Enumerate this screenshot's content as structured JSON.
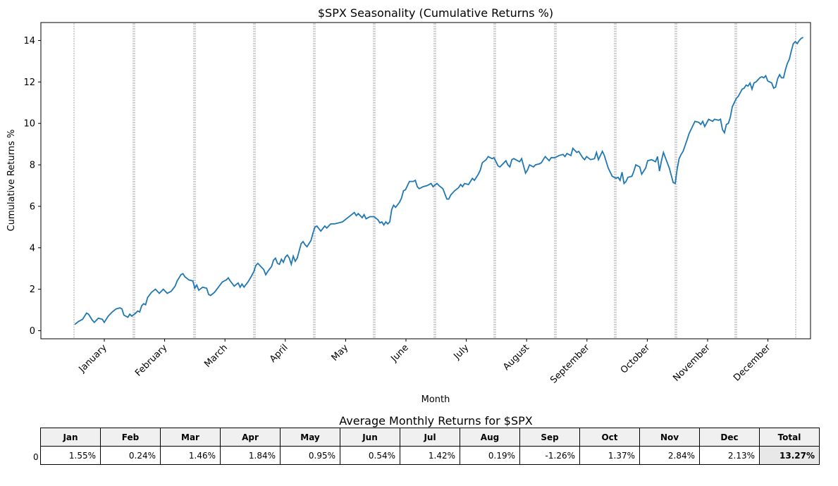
{
  "chart_data": {
    "type": "line",
    "title": "$SPX Seasonality (Cumulative Returns %)",
    "xlabel": "Month",
    "ylabel": "Cumulative Returns %",
    "ylim": [
      -0.4,
      14.8
    ],
    "yticks": [
      0,
      2,
      4,
      6,
      8,
      10,
      12,
      14
    ],
    "month_labels": [
      "January",
      "February",
      "March",
      "April",
      "May",
      "June",
      "July",
      "August",
      "September",
      "October",
      "November",
      "December"
    ],
    "grid": "vertical dashed month separators",
    "series": [
      {
        "color": "#1f77b4",
        "points": [
          [
            0,
            0.3
          ],
          [
            2,
            0.45
          ],
          [
            4,
            0.55
          ],
          [
            6,
            0.85
          ],
          [
            7,
            0.8
          ],
          [
            9,
            0.5
          ],
          [
            10,
            0.4
          ],
          [
            12,
            0.6
          ],
          [
            14,
            0.55
          ],
          [
            15,
            0.4
          ],
          [
            17,
            0.7
          ],
          [
            19,
            0.9
          ],
          [
            21,
            1.05
          ],
          [
            23,
            1.1
          ],
          [
            24,
            1.05
          ],
          [
            25,
            0.75
          ],
          [
            27,
            0.65
          ],
          [
            28,
            0.8
          ],
          [
            29,
            0.7
          ],
          [
            31,
            0.85
          ],
          [
            32,
            0.95
          ],
          [
            33,
            0.9
          ],
          [
            34,
            1.2
          ],
          [
            35,
            1.3
          ],
          [
            36,
            1.25
          ],
          [
            37,
            1.6
          ],
          [
            39,
            1.85
          ],
          [
            41,
            2.0
          ],
          [
            43,
            1.8
          ],
          [
            45,
            2.0
          ],
          [
            47,
            1.8
          ],
          [
            49,
            1.9
          ],
          [
            51,
            2.15
          ],
          [
            52,
            2.4
          ],
          [
            54,
            2.7
          ],
          [
            55,
            2.75
          ],
          [
            56,
            2.6
          ],
          [
            58,
            2.45
          ],
          [
            60,
            2.4
          ],
          [
            61,
            2.05
          ],
          [
            62,
            2.2
          ],
          [
            63,
            1.95
          ],
          [
            65,
            2.1
          ],
          [
            67,
            2.05
          ],
          [
            68,
            1.75
          ],
          [
            69,
            1.7
          ],
          [
            71,
            1.85
          ],
          [
            73,
            2.1
          ],
          [
            75,
            2.35
          ],
          [
            77,
            2.45
          ],
          [
            78,
            2.55
          ],
          [
            79,
            2.4
          ],
          [
            81,
            2.15
          ],
          [
            83,
            2.3
          ],
          [
            84,
            2.1
          ],
          [
            85,
            2.25
          ],
          [
            86,
            2.1
          ],
          [
            88,
            2.35
          ],
          [
            89,
            2.5
          ],
          [
            91,
            2.85
          ],
          [
            92,
            3.15
          ],
          [
            93,
            3.25
          ],
          [
            95,
            3.05
          ],
          [
            96,
            2.95
          ],
          [
            97,
            2.7
          ],
          [
            98,
            2.85
          ],
          [
            100,
            3.1
          ],
          [
            101,
            3.4
          ],
          [
            102,
            3.5
          ],
          [
            103,
            3.25
          ],
          [
            104,
            3.2
          ],
          [
            105,
            3.45
          ],
          [
            106,
            3.3
          ],
          [
            107,
            3.55
          ],
          [
            108,
            3.65
          ],
          [
            109,
            3.5
          ],
          [
            110,
            3.2
          ],
          [
            111,
            3.6
          ],
          [
            112,
            3.35
          ],
          [
            113,
            3.5
          ],
          [
            114,
            3.85
          ],
          [
            115,
            4.2
          ],
          [
            116,
            4.3
          ],
          [
            117,
            4.15
          ],
          [
            118,
            4.05
          ],
          [
            119,
            4.2
          ],
          [
            120,
            4.35
          ],
          [
            121,
            4.7
          ],
          [
            122,
            5.0
          ],
          [
            123,
            5.05
          ],
          [
            125,
            4.8
          ],
          [
            127,
            5.05
          ],
          [
            128,
            4.95
          ],
          [
            130,
            5.15
          ],
          [
            132,
            5.15
          ],
          [
            134,
            5.2
          ],
          [
            136,
            5.25
          ],
          [
            138,
            5.4
          ],
          [
            140,
            5.55
          ],
          [
            142,
            5.7
          ],
          [
            143,
            5.55
          ],
          [
            144,
            5.65
          ],
          [
            146,
            5.45
          ],
          [
            147,
            5.6
          ],
          [
            148,
            5.4
          ],
          [
            150,
            5.5
          ],
          [
            152,
            5.5
          ],
          [
            154,
            5.35
          ],
          [
            155,
            5.2
          ],
          [
            156,
            5.25
          ],
          [
            157,
            5.1
          ],
          [
            158,
            5.25
          ],
          [
            159,
            5.15
          ],
          [
            160,
            5.25
          ],
          [
            161,
            5.85
          ],
          [
            162,
            6.05
          ],
          [
            163,
            5.95
          ],
          [
            165,
            6.2
          ],
          [
            166,
            6.4
          ],
          [
            167,
            6.75
          ],
          [
            168,
            6.8
          ],
          [
            170,
            7.2
          ],
          [
            172,
            7.2
          ],
          [
            173,
            7.25
          ],
          [
            174,
            6.95
          ],
          [
            175,
            6.85
          ],
          [
            177,
            6.95
          ],
          [
            179,
            7.0
          ],
          [
            181,
            7.1
          ],
          [
            182,
            6.95
          ],
          [
            184,
            7.1
          ],
          [
            185,
            7.0
          ],
          [
            187,
            6.85
          ],
          [
            189,
            6.35
          ],
          [
            190,
            6.35
          ],
          [
            191,
            6.55
          ],
          [
            193,
            6.75
          ],
          [
            195,
            6.9
          ],
          [
            196,
            7.05
          ],
          [
            197,
            6.95
          ],
          [
            198,
            7.1
          ],
          [
            200,
            7.05
          ],
          [
            202,
            7.35
          ],
          [
            203,
            7.25
          ],
          [
            205,
            7.55
          ],
          [
            206,
            7.75
          ],
          [
            207,
            8.1
          ],
          [
            209,
            8.25
          ],
          [
            210,
            8.4
          ],
          [
            212,
            8.3
          ],
          [
            213,
            8.35
          ],
          [
            215,
            7.95
          ],
          [
            216,
            7.9
          ],
          [
            218,
            8.1
          ],
          [
            219,
            8.2
          ],
          [
            220,
            8.0
          ],
          [
            221,
            7.9
          ],
          [
            222,
            8.25
          ],
          [
            223,
            8.3
          ],
          [
            225,
            8.2
          ],
          [
            226,
            8.15
          ],
          [
            227,
            8.3
          ],
          [
            229,
            7.6
          ],
          [
            230,
            7.75
          ],
          [
            231,
            8.0
          ],
          [
            233,
            7.9
          ],
          [
            234,
            8.0
          ],
          [
            236,
            8.05
          ],
          [
            237,
            8.1
          ],
          [
            239,
            8.4
          ],
          [
            241,
            8.2
          ],
          [
            242,
            8.35
          ],
          [
            244,
            8.35
          ],
          [
            246,
            8.45
          ],
          [
            248,
            8.5
          ],
          [
            249,
            8.4
          ],
          [
            250,
            8.55
          ],
          [
            252,
            8.45
          ],
          [
            253,
            8.8
          ],
          [
            255,
            8.6
          ],
          [
            256,
            8.65
          ],
          [
            258,
            8.35
          ],
          [
            259,
            8.25
          ],
          [
            260,
            8.4
          ],
          [
            262,
            8.25
          ],
          [
            264,
            8.3
          ],
          [
            265,
            8.6
          ],
          [
            266,
            8.25
          ],
          [
            267,
            8.45
          ],
          [
            268,
            8.65
          ],
          [
            269,
            8.45
          ],
          [
            270,
            8.15
          ],
          [
            271,
            7.85
          ],
          [
            273,
            7.45
          ],
          [
            275,
            7.35
          ],
          [
            276,
            7.4
          ],
          [
            277,
            7.25
          ],
          [
            278,
            7.65
          ],
          [
            279,
            7.1
          ],
          [
            280,
            7.2
          ],
          [
            281,
            7.4
          ],
          [
            283,
            7.45
          ],
          [
            284,
            7.7
          ],
          [
            285,
            8.0
          ],
          [
            287,
            7.9
          ],
          [
            288,
            7.55
          ],
          [
            290,
            7.85
          ],
          [
            291,
            8.2
          ],
          [
            293,
            8.25
          ],
          [
            295,
            8.15
          ],
          [
            296,
            8.4
          ],
          [
            297,
            7.7
          ],
          [
            298,
            8.2
          ],
          [
            299,
            8.6
          ],
          [
            301,
            8.1
          ],
          [
            302,
            7.85
          ],
          [
            303,
            7.5
          ],
          [
            304,
            7.15
          ],
          [
            305,
            7.1
          ],
          [
            306,
            7.8
          ],
          [
            307,
            8.3
          ],
          [
            308,
            8.5
          ],
          [
            309,
            8.65
          ],
          [
            311,
            9.2
          ],
          [
            312,
            9.5
          ],
          [
            314,
            9.9
          ],
          [
            315,
            10.1
          ],
          [
            317,
            10.05
          ],
          [
            318,
            9.95
          ],
          [
            319,
            10.1
          ],
          [
            320,
            9.85
          ],
          [
            322,
            10.2
          ],
          [
            324,
            10.1
          ],
          [
            325,
            10.2
          ],
          [
            327,
            10.15
          ],
          [
            328,
            10.2
          ],
          [
            329,
            9.7
          ],
          [
            330,
            9.55
          ],
          [
            331,
            9.95
          ],
          [
            332,
            10.0
          ],
          [
            333,
            10.3
          ],
          [
            334,
            10.8
          ],
          [
            336,
            11.2
          ],
          [
            337,
            11.3
          ],
          [
            339,
            11.65
          ],
          [
            340,
            11.7
          ],
          [
            341,
            11.85
          ],
          [
            342,
            11.8
          ],
          [
            343,
            11.95
          ],
          [
            344,
            11.65
          ],
          [
            345,
            11.95
          ],
          [
            346,
            12.0
          ],
          [
            348,
            12.2
          ],
          [
            349,
            12.25
          ],
          [
            350,
            12.2
          ],
          [
            351,
            12.3
          ],
          [
            352,
            12.05
          ],
          [
            354,
            11.95
          ],
          [
            355,
            11.7
          ],
          [
            356,
            11.75
          ],
          [
            357,
            12.15
          ],
          [
            358,
            12.35
          ],
          [
            359,
            12.2
          ],
          [
            360,
            12.2
          ],
          [
            361,
            12.6
          ],
          [
            362,
            12.9
          ],
          [
            363,
            13.1
          ],
          [
            364,
            13.5
          ],
          [
            365,
            13.85
          ],
          [
            366,
            13.95
          ],
          [
            367,
            13.85
          ],
          [
            368,
            14.0
          ],
          [
            369,
            14.1
          ],
          [
            370,
            14.15
          ]
        ]
      }
    ]
  },
  "table": {
    "title": "Average Monthly Returns for $SPX",
    "row_label": "0",
    "headers": [
      "Jan",
      "Feb",
      "Mar",
      "Apr",
      "May",
      "Jun",
      "Jul",
      "Aug",
      "Sep",
      "Oct",
      "Nov",
      "Dec",
      "Total"
    ],
    "values": [
      "1.55%",
      "0.24%",
      "1.46%",
      "1.84%",
      "0.95%",
      "0.54%",
      "1.42%",
      "0.19%",
      "-1.26%",
      "1.37%",
      "2.84%",
      "2.13%",
      "13.27%"
    ]
  }
}
